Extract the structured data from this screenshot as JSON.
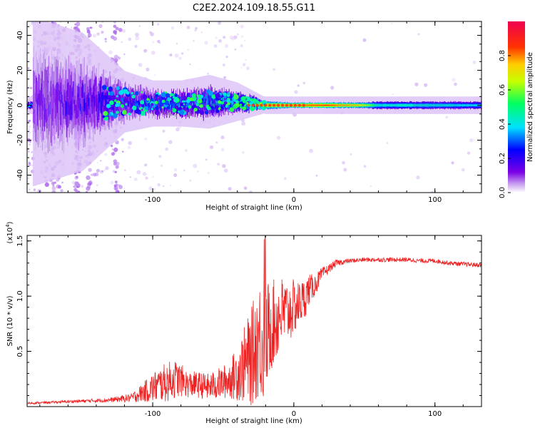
{
  "figure_title": "C2E2.2024.109.18.55.G11",
  "chart_data": [
    {
      "type": "heatmap",
      "title": "C2E2.2024.109.18.55.G11",
      "xlabel": "Height of straight line (km)",
      "ylabel": "Frequency (Hz)",
      "xlim": [
        -189,
        133
      ],
      "ylim": [
        -50,
        48
      ],
      "x_ticks": [
        -100,
        0,
        100
      ],
      "y_ticks": [
        -40,
        -20,
        0,
        20,
        40
      ],
      "grid": false,
      "description": "Doppler spectrum: broad scattered purple noise for heights below about -120 km, a noisy blue/green band near 0 Hz from -120 to -30 km, and a narrow red/green line centered near 0 Hz above about -20 km.",
      "ridge": [
        {
          "x": -185,
          "y": 2,
          "amp": 0.25,
          "spread": 22
        },
        {
          "x": -150,
          "y": 2,
          "amp": 0.3,
          "spread": 18
        },
        {
          "x": -120,
          "y": 2,
          "amp": 0.35,
          "spread": 8
        },
        {
          "x": -100,
          "y": 1,
          "amp": 0.4,
          "spread": 6
        },
        {
          "x": -80,
          "y": 1,
          "amp": 0.45,
          "spread": 6
        },
        {
          "x": -60,
          "y": 2,
          "amp": 0.45,
          "spread": 7
        },
        {
          "x": -40,
          "y": 2,
          "amp": 0.5,
          "spread": 5
        },
        {
          "x": -20,
          "y": 0,
          "amp": 0.8,
          "spread": 2
        },
        {
          "x": 0,
          "y": 0,
          "amp": 0.85,
          "spread": 1.5
        },
        {
          "x": 20,
          "y": 0,
          "amp": 0.9,
          "spread": 1.5
        },
        {
          "x": 45,
          "y": 0,
          "amp": 0.8,
          "spread": 1.5
        },
        {
          "x": 60,
          "y": 0,
          "amp": 0.5,
          "spread": 2
        },
        {
          "x": 100,
          "y": 0,
          "amp": 0.5,
          "spread": 2
        },
        {
          "x": 133,
          "y": 0,
          "amp": 0.45,
          "spread": 2
        }
      ],
      "colorbar": {
        "label": "Normalized spectral amplitude",
        "range": [
          0,
          1
        ],
        "ticks": [
          0.0,
          0.2,
          0.4,
          0.6,
          0.8
        ],
        "tick_labels": [
          "0.0",
          "0.2",
          "0.4",
          "0.6",
          "0.8"
        ],
        "colormap": [
          "#ffffff",
          "#c8a0f0",
          "#7a00e6",
          "#0000ff",
          "#00e0ff",
          "#00ff60",
          "#c8ff00",
          "#ffcc00",
          "#ff3300",
          "#f00050"
        ]
      }
    },
    {
      "type": "line",
      "xlabel": "Height of straight line (km)",
      "ylabel": "SNR (10 * v/v)",
      "y_multiplier": "(x10",
      "y_multiplier_exp": "4",
      "y_multiplier_close": ")",
      "xlim": [
        -189,
        133
      ],
      "ylim": [
        0,
        1.55
      ],
      "x_ticks": [
        -100,
        0,
        100
      ],
      "y_ticks": [
        0.5,
        1.0,
        1.5
      ],
      "y_tick_labels": [
        "0.5",
        "1.0",
        "1.5"
      ],
      "grid": false,
      "color": "#ee2222",
      "series": [
        {
          "x": [
            -189,
            -170,
            -150,
            -130,
            -115,
            -105,
            -100,
            -95,
            -90,
            -85,
            -80,
            -75,
            -70,
            -65,
            -60,
            -55,
            -50,
            -45,
            -40,
            -35,
            -30,
            -27,
            -25,
            -22,
            -20,
            -18,
            -15,
            -12,
            -10,
            -7,
            -5,
            -2,
            0,
            3,
            5,
            8,
            10,
            15,
            20,
            25,
            30,
            40,
            50,
            60,
            70,
            80,
            90,
            100,
            110,
            120,
            133
          ],
          "y": [
            0.03,
            0.04,
            0.05,
            0.06,
            0.08,
            0.14,
            0.17,
            0.2,
            0.22,
            0.25,
            0.24,
            0.2,
            0.2,
            0.19,
            0.18,
            0.2,
            0.22,
            0.25,
            0.3,
            0.38,
            0.45,
            0.55,
            0.62,
            0.58,
            0.62,
            0.7,
            0.75,
            0.78,
            0.85,
            0.85,
            0.85,
            0.88,
            0.9,
            0.92,
            0.95,
            0.98,
            1.05,
            1.1,
            1.2,
            1.25,
            1.3,
            1.32,
            1.33,
            1.33,
            1.33,
            1.33,
            1.32,
            1.32,
            1.3,
            1.29,
            1.28
          ],
          "noise": [
            0.01,
            0.01,
            0.015,
            0.02,
            0.04,
            0.1,
            0.14,
            0.16,
            0.18,
            0.18,
            0.15,
            0.12,
            0.12,
            0.12,
            0.12,
            0.14,
            0.15,
            0.18,
            0.25,
            0.35,
            0.45,
            0.5,
            0.55,
            0.55,
            0.5,
            0.45,
            0.4,
            0.38,
            0.35,
            0.32,
            0.3,
            0.28,
            0.25,
            0.22,
            0.2,
            0.18,
            0.15,
            0.1,
            0.06,
            0.04,
            0.03,
            0.02,
            0.02,
            0.02,
            0.02,
            0.02,
            0.02,
            0.02,
            0.02,
            0.02,
            0.02
          ]
        }
      ]
    }
  ]
}
